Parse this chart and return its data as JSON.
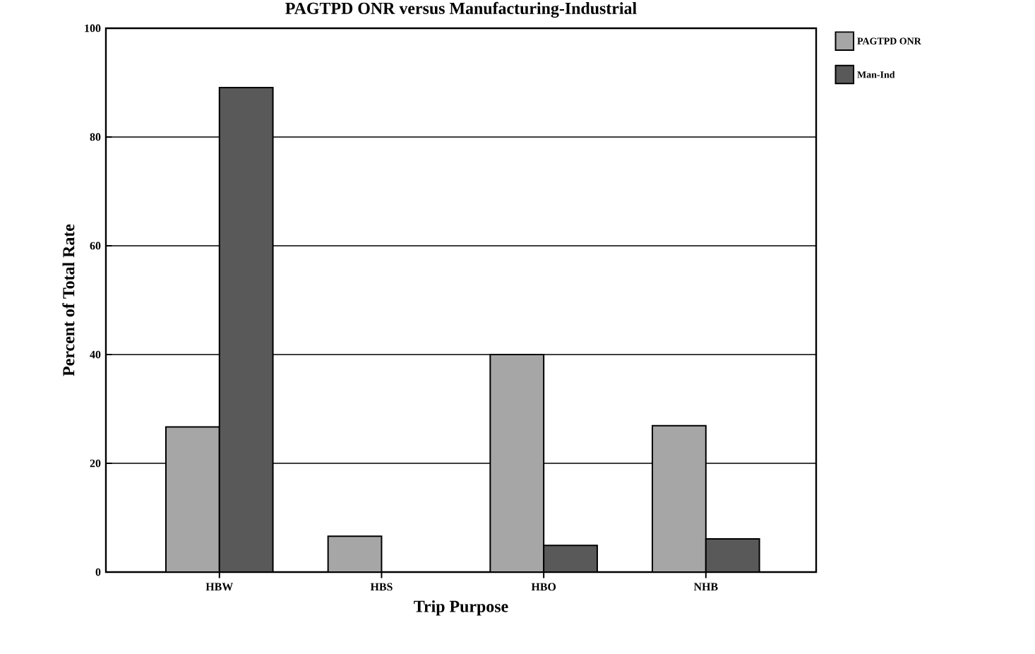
{
  "chart_data": {
    "type": "bar",
    "title": "PAGTPD ONR versus Manufacturing-Industrial",
    "xlabel": "Trip Purpose",
    "ylabel": "Percent of Total Rate",
    "categories": [
      "HBW",
      "HBS",
      "HBO",
      "NHB"
    ],
    "series": [
      {
        "name": "PAGTPD ONR",
        "color": "#a6a6a6",
        "values": [
          26.7,
          6.6,
          40,
          26.9
        ]
      },
      {
        "name": "Man-Ind",
        "color": "#595959",
        "values": [
          89.1,
          0,
          4.9,
          6.1
        ]
      }
    ],
    "ylim": [
      0,
      100
    ],
    "yticks": [
      0,
      20,
      40,
      60,
      80,
      100
    ],
    "grid": "y",
    "legend": "top right"
  }
}
